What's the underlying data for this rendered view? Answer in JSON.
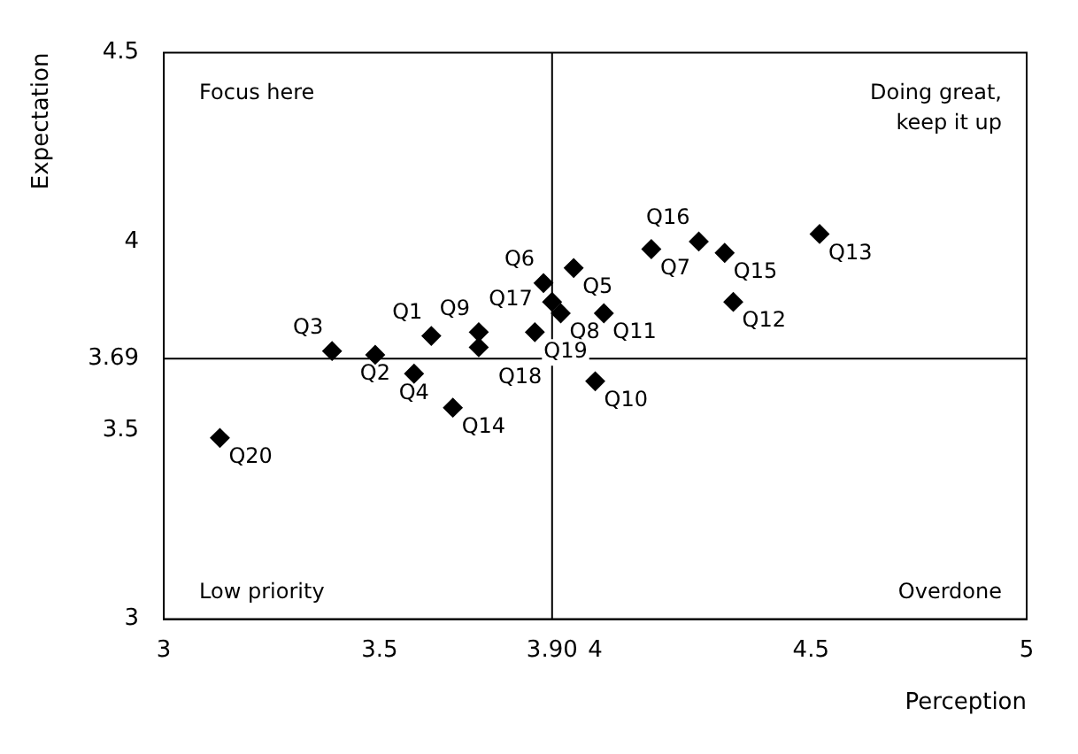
{
  "chart_data": {
    "type": "scatter",
    "xlabel": "Perception",
    "ylabel": "Expectation",
    "x": [
      3.62,
      3.49,
      3.39,
      3.58,
      3.95,
      3.88,
      4.13,
      3.92,
      3.73,
      4.0,
      4.02,
      4.32,
      4.52,
      3.67,
      4.3,
      4.24,
      3.9,
      3.73,
      3.86,
      3.13
    ],
    "series": [
      {
        "color": "#000000",
        "values": [
          3.75,
          3.7,
          3.71,
          3.65,
          3.93,
          3.89,
          3.98,
          3.81,
          3.76,
          3.63,
          3.81,
          3.84,
          4.02,
          3.56,
          3.97,
          4.0,
          3.84,
          3.72,
          3.76,
          3.48
        ]
      }
    ],
    "xlim": [
      3,
      5
    ],
    "xticks": [
      3,
      3.5,
      {
        "value": 3.9,
        "label": "3.90"
      },
      4,
      4.5,
      5
    ],
    "ylim": [
      3,
      4.5
    ],
    "yticks": [
      3,
      3.5,
      3.69,
      4,
      4.5
    ],
    "ref_lines": [
      {
        "axis": "x",
        "value": 3.9,
        "color": "#000000"
      },
      {
        "axis": "y",
        "value": 3.69,
        "color": "#000000"
      }
    ],
    "grid": false,
    "legend": false,
    "marker": "diamond",
    "annotations": [
      "Focus here",
      "Doing great,\nkeep it up",
      "Low priority",
      "Overdone",
      {
        "text": "Q1",
        "x": 3.62,
        "y": 3.75
      },
      {
        "text": "Q2",
        "x": 3.49,
        "y": 3.7
      },
      {
        "text": "Q3",
        "x": 3.39,
        "y": 3.71
      },
      {
        "text": "Q4",
        "x": 3.58,
        "y": 3.65
      },
      {
        "text": "Q5",
        "x": 3.95,
        "y": 3.93
      },
      {
        "text": "Q6",
        "x": 3.88,
        "y": 3.89
      },
      {
        "text": "Q7",
        "x": 4.13,
        "y": 3.98
      },
      {
        "text": "Q8",
        "x": 3.92,
        "y": 3.81
      },
      {
        "text": "Q9",
        "x": 3.73,
        "y": 3.76
      },
      {
        "text": "Q10",
        "x": 4.0,
        "y": 3.63
      },
      {
        "text": "Q11",
        "x": 4.02,
        "y": 3.81
      },
      {
        "text": "Q12",
        "x": 4.32,
        "y": 3.84
      },
      {
        "text": "Q13",
        "x": 4.52,
        "y": 4.02
      },
      {
        "text": "Q14",
        "x": 3.67,
        "y": 3.56
      },
      {
        "text": "Q15",
        "x": 4.3,
        "y": 3.97
      },
      {
        "text": "Q16",
        "x": 4.24,
        "y": 4.0
      },
      {
        "text": "Q17",
        "x": 3.9,
        "y": 3.84
      },
      {
        "text": "Q18",
        "x": 3.73,
        "y": 3.72
      },
      {
        "text": "Q19",
        "x": 3.86,
        "y": 3.76
      },
      {
        "text": "Q20",
        "x": 3.13,
        "y": 3.48
      }
    ]
  }
}
